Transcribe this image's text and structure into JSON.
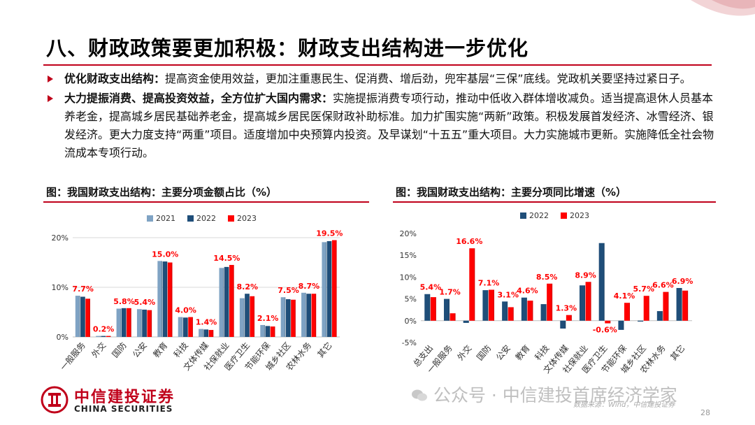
{
  "slide": {
    "title": "八、财政政策要更加积极：财政支出结构进一步优化",
    "bullets": [
      {
        "head": "优化财政支出结构：",
        "text": "提高资金使用效益，更加注重惠民生、促消费、增后劲，兜牢基层“三保”底线。党政机关要坚持过紧日子。"
      },
      {
        "head": "大力提振消费、提高投资效益，全方位扩大国内需求：",
        "text": "实施提振消费专项行动，推动中低收入群体增收减负。适当提高退休人员基本养老金，提高城乡居民基础养老金，提高城乡居民医保财政补助标准。加力扩围实施“两新”政策。积极发展首发经济、冰雪经济、银发经济。更大力度支持“两重”项目。适度增加中央预算内投资。及早谋划“十五五”重大项目。大力实施城市更新。实施降低全社会物流成本专项行动。"
      }
    ],
    "page_number": "28",
    "source": "数据来源：Wind，中信建投证券",
    "watermark": "公众号 · 中信建投首席经济学家",
    "logo": {
      "cn": "中信建投证券",
      "en": "CHINA SECURITIES"
    }
  },
  "colors": {
    "accent": "#c0001a",
    "s2021": "#7fa3c4",
    "s2022": "#1f4e79",
    "s2023": "#ff0000"
  },
  "chart_data": [
    {
      "type": "bar",
      "title": "图：我国财政支出结构：主要分项金额占比（%）",
      "categories": [
        "一般服务",
        "外交",
        "国防",
        "公安",
        "教育",
        "科技",
        "文体传媒",
        "社保就业",
        "医疗卫生",
        "节能环保",
        "城乡社区",
        "农林水务",
        "其它"
      ],
      "series": [
        {
          "name": "2021",
          "values": [
            8.3,
            0.2,
            5.7,
            5.6,
            15.3,
            4.0,
            1.6,
            13.9,
            7.8,
            2.4,
            8.0,
            8.9,
            19.1
          ]
        },
        {
          "name": "2022",
          "values": [
            8.1,
            0.2,
            5.8,
            5.5,
            15.2,
            3.9,
            1.5,
            14.1,
            8.7,
            2.2,
            7.6,
            8.7,
            19.3
          ]
        },
        {
          "name": "2023",
          "values": [
            7.7,
            0.2,
            5.8,
            5.4,
            15.0,
            4.0,
            1.4,
            14.5,
            8.2,
            2.1,
            7.5,
            8.7,
            19.5
          ]
        }
      ],
      "data_labels": [
        "7.7%",
        "0.2%",
        "5.8%",
        "5.4%",
        "15.0%",
        "4.0%",
        "1.4%",
        "14.5%",
        "8.2%",
        "2.1%",
        "7.5%",
        "8.7%",
        "19.5%"
      ],
      "yticks": [
        "0%",
        "10%",
        "20%"
      ],
      "ylim": [
        0,
        20
      ],
      "legend": "top"
    },
    {
      "type": "bar",
      "title": "图：我国财政支出结构：主要分项同比增速（%）",
      "categories": [
        "总支出",
        "一般服务",
        "外交",
        "国防",
        "公安",
        "教育",
        "科技",
        "文体传媒",
        "社保就业",
        "医疗卫生",
        "节能环保",
        "城乡社区",
        "农林水务",
        "其它"
      ],
      "series": [
        {
          "name": "2022",
          "values": [
            6.1,
            5.0,
            -0.5,
            7.0,
            4.4,
            5.3,
            3.8,
            -1.8,
            8.1,
            17.8,
            -2.1,
            -0.2,
            2.2,
            7.5
          ]
        },
        {
          "name": "2023",
          "values": [
            5.4,
            1.7,
            16.6,
            7.1,
            3.1,
            4.6,
            8.5,
            1.3,
            8.9,
            -0.6,
            4.1,
            5.7,
            6.6,
            6.9
          ]
        }
      ],
      "data_labels": [
        "5.4%",
        "1.7%",
        "16.6%",
        "7.1%",
        "3.1%",
        "4.6%",
        "8.5%",
        "1.3%",
        "8.9%",
        "-0.6%",
        "4.1%",
        "5.7%",
        "6.6%",
        "6.9%"
      ],
      "yticks": [
        "-5%",
        "0%",
        "5%",
        "10%",
        "15%",
        "20%"
      ],
      "ylim": [
        -5,
        20
      ],
      "legend": "top"
    }
  ]
}
